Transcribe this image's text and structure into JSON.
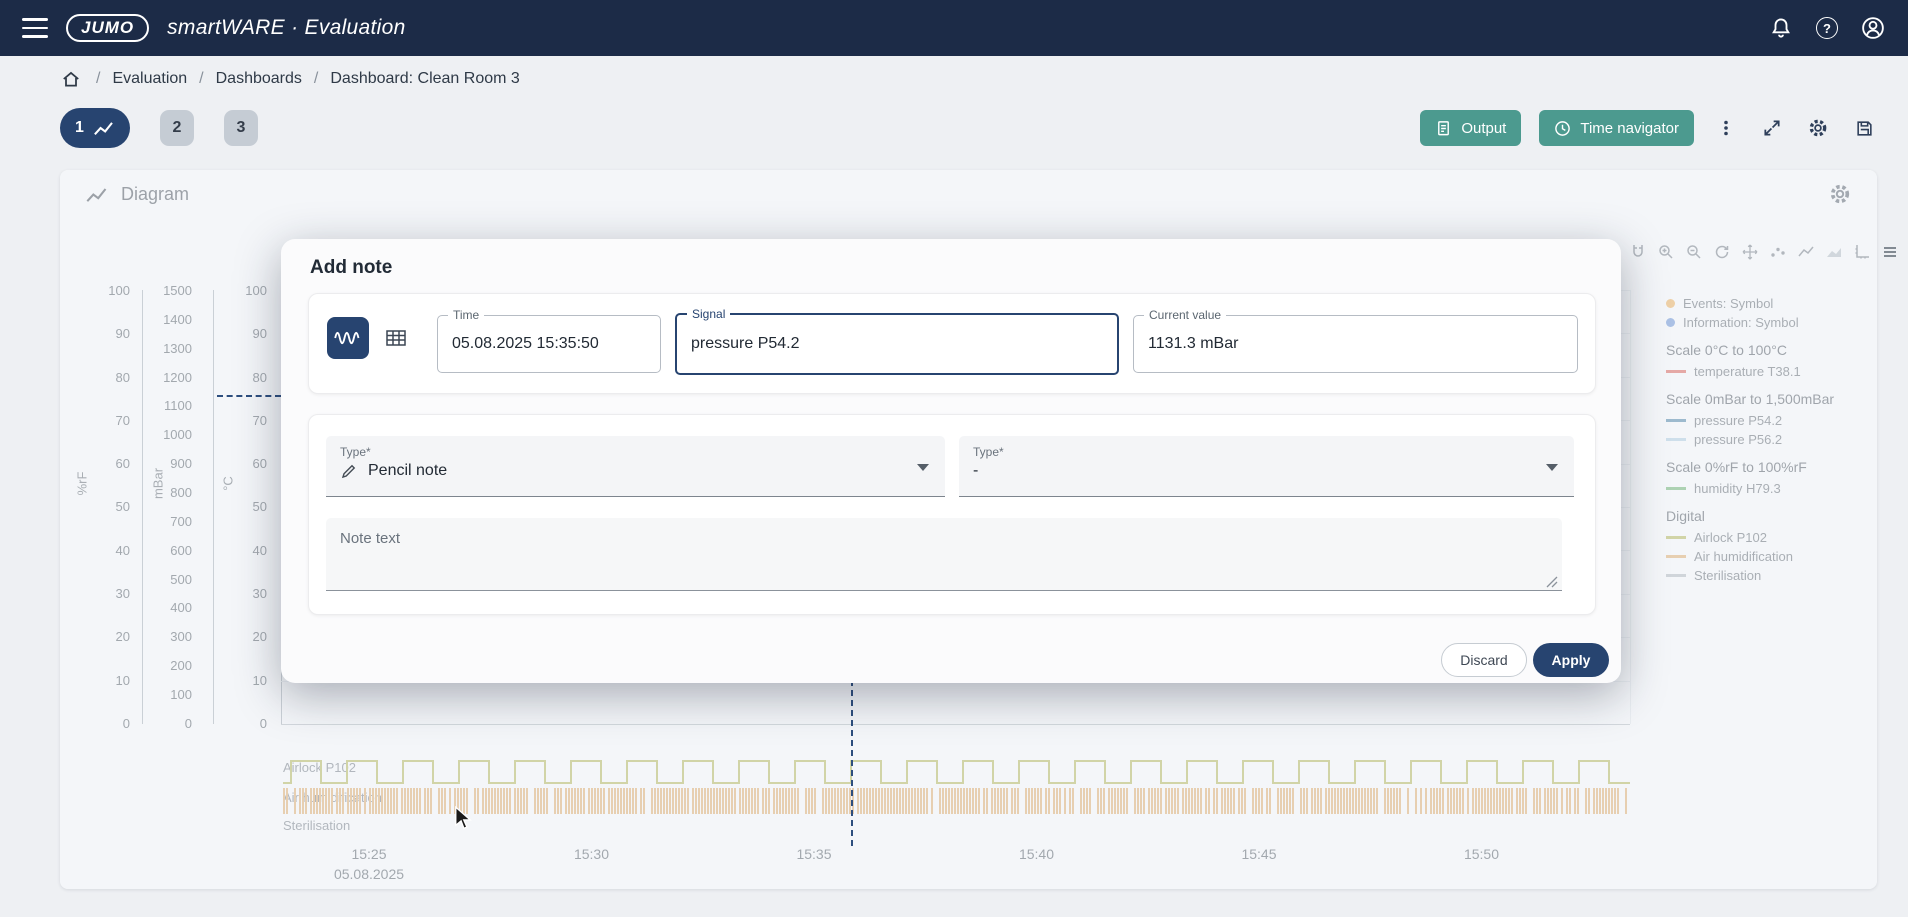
{
  "app": {
    "logo_text": "JUMO",
    "title": "smartWARE · Evaluation"
  },
  "breadcrumb": {
    "items": [
      "Evaluation",
      "Dashboards",
      "Dashboard: Clean Room 3"
    ]
  },
  "tabs": [
    {
      "label": "1"
    },
    {
      "label": "2"
    },
    {
      "label": "3"
    }
  ],
  "toolbar": {
    "output_label": "Output",
    "time_navigator_label": "Time navigator"
  },
  "panel": {
    "title": "Diagram"
  },
  "modal": {
    "title": "Add note",
    "fields": {
      "time": {
        "label": "Time",
        "value": "05.08.2025 15:35:50"
      },
      "signal": {
        "label": "Signal",
        "value": "pressure P54.2"
      },
      "current_value": {
        "label": "Current value",
        "value": "1131.3 mBar"
      }
    },
    "type_note": {
      "label": "Type*",
      "value": "Pencil note"
    },
    "type_secondary": {
      "label": "Type*",
      "value": "-"
    },
    "note": {
      "placeholder": "Note text"
    },
    "discard_label": "Discard",
    "apply_label": "Apply"
  },
  "chart": {
    "axes": [
      {
        "unit": "%rF",
        "ticks": [
          "100",
          "90",
          "80",
          "70",
          "60",
          "50",
          "40",
          "30",
          "20",
          "10",
          "0"
        ]
      },
      {
        "unit": "mBar",
        "ticks": [
          "1500",
          "1400",
          "1300",
          "1200",
          "1100",
          "1000",
          "900",
          "800",
          "700",
          "600",
          "500",
          "400",
          "300",
          "200",
          "100",
          "0"
        ]
      },
      {
        "unit": "°C",
        "ticks": [
          "100",
          "90",
          "80",
          "70",
          "60",
          "50",
          "40",
          "30",
          "20",
          "10",
          "0"
        ]
      }
    ],
    "x": {
      "ticks": [
        "15:25",
        "15:30",
        "15:35",
        "15:40",
        "15:45",
        "15:50"
      ],
      "date": "05.08.2025"
    },
    "digital": [
      {
        "label": "Airlock P102",
        "color": "#a9ab3d"
      },
      {
        "label": "Air humidification",
        "color": "#dd9f55"
      },
      {
        "label": "Sterilisation",
        "color": "#a8aeb6"
      }
    ],
    "legend": {
      "symbols": [
        {
          "label": "Events: Symbol",
          "color": "#efa33c"
        },
        {
          "label": "Information: Symbol",
          "color": "#4f7fd0"
        }
      ],
      "groups": [
        {
          "title": "Scale 0°C to 100°C",
          "items": [
            {
              "label": "temperature T38.1",
              "color": "#d8453a"
            }
          ]
        },
        {
          "title": "Scale 0mBar to 1,500mBar",
          "items": [
            {
              "label": "pressure P54.2",
              "color": "#2f6f99"
            },
            {
              "label": "pressure P56.2",
              "color": "#a3c6de"
            }
          ]
        },
        {
          "title": "Scale 0%rF to 100%rF",
          "items": [
            {
              "label": "humidity H79.3",
              "color": "#55a85a"
            }
          ]
        },
        {
          "title": "Digital",
          "items": [
            {
              "label": "Airlock P102",
              "color": "#a9ab3d"
            },
            {
              "label": "Air humidification",
              "color": "#dd9f55"
            },
            {
              "label": "Sterilisation",
              "color": "#a8aeb6"
            }
          ]
        }
      ]
    },
    "crosshair": {
      "value_mbar": "1131.3",
      "time": "15:35:50"
    }
  },
  "colors": {
    "topbar": "#1c2b47",
    "primary": "#274470",
    "teal": "#4c9a8f",
    "page_bg": "#eef0f3"
  }
}
